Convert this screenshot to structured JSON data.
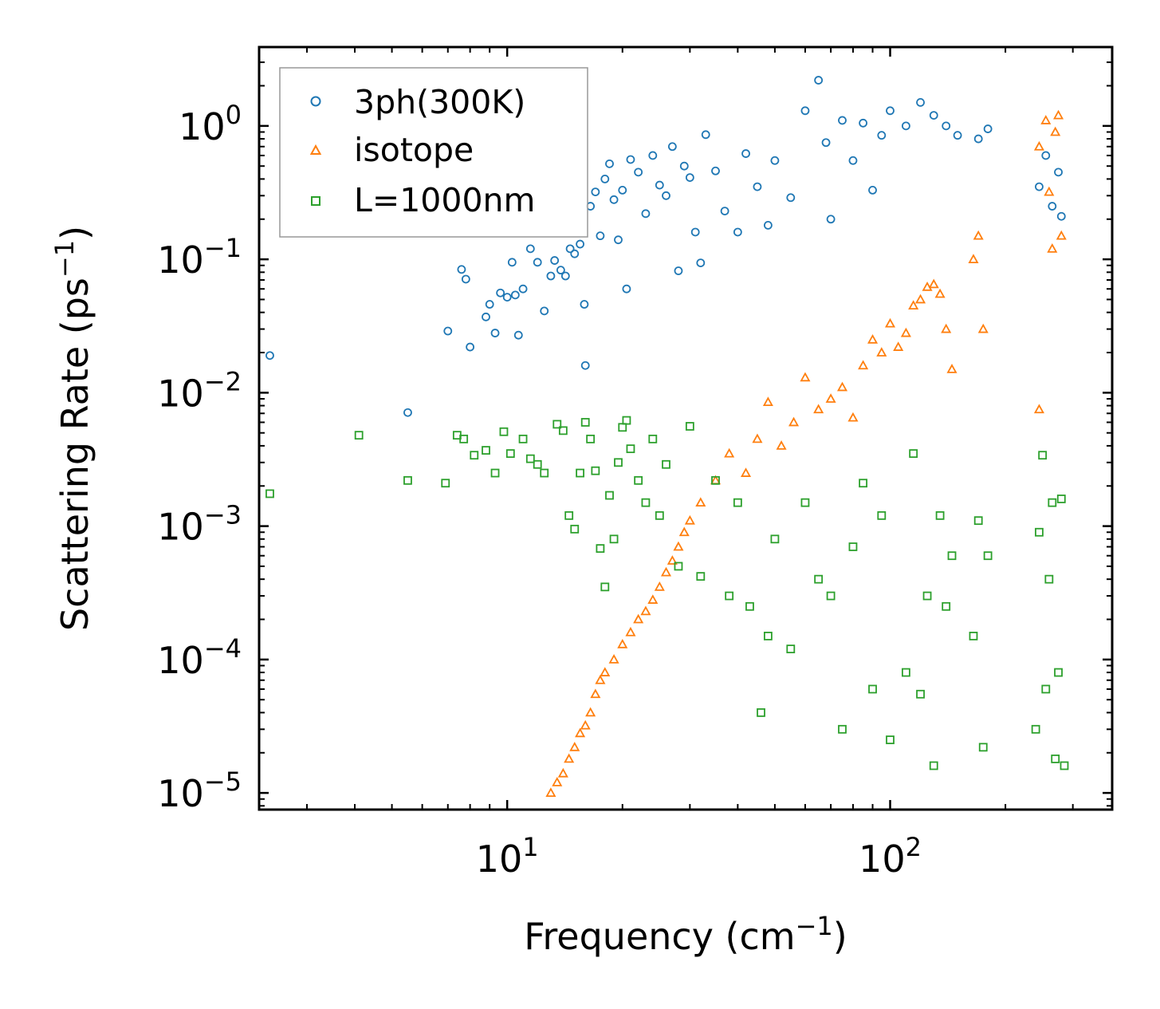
{
  "chart_data": {
    "type": "scatter",
    "xscale": "log",
    "yscale": "log",
    "xlim": [
      2.25,
      380
    ],
    "ylim": [
      7.5e-06,
      3.9
    ],
    "xlabel": "Frequency (cm",
    "xlabel_sup": "−1",
    "xlabel_end": ")",
    "ylabel": "Scattering Rate (ps",
    "ylabel_sup": "−1",
    "ylabel_end": ")",
    "x_ticks": [
      {
        "value": 10,
        "base": "10",
        "exp": "1"
      },
      {
        "value": 100,
        "base": "10",
        "exp": "2"
      }
    ],
    "y_ticks": [
      {
        "value": 1,
        "base": "10",
        "exp": "0"
      },
      {
        "value": 0.1,
        "base": "10",
        "exp": "−1"
      },
      {
        "value": 0.01,
        "base": "10",
        "exp": "−2"
      },
      {
        "value": 0.001,
        "base": "10",
        "exp": "−3"
      },
      {
        "value": 0.0001,
        "base": "10",
        "exp": "−4"
      },
      {
        "value": 1e-05,
        "base": "10",
        "exp": "−5"
      }
    ],
    "legend_position": "top-left",
    "series": [
      {
        "name": "3ph(300K)",
        "marker": "circle",
        "color": "#1f77b4",
        "points": [
          [
            2.4,
            0.019
          ],
          [
            5.5,
            0.0071
          ],
          [
            7.0,
            0.029
          ],
          [
            7.6,
            0.084
          ],
          [
            7.8,
            0.071
          ],
          [
            8.0,
            0.022
          ],
          [
            8.8,
            0.037
          ],
          [
            9.0,
            0.046
          ],
          [
            9.3,
            0.028
          ],
          [
            9.6,
            0.056
          ],
          [
            10.0,
            0.052
          ],
          [
            10.3,
            0.095
          ],
          [
            10.5,
            0.054
          ],
          [
            10.7,
            0.027
          ],
          [
            11.0,
            0.06
          ],
          [
            11.5,
            0.12
          ],
          [
            12.0,
            0.095
          ],
          [
            12.5,
            0.041
          ],
          [
            13.0,
            0.075
          ],
          [
            13.3,
            0.098
          ],
          [
            13.8,
            0.083
          ],
          [
            14.2,
            0.075
          ],
          [
            14.6,
            0.12
          ],
          [
            15.0,
            0.11
          ],
          [
            15.5,
            0.13
          ],
          [
            15.9,
            0.046
          ],
          [
            16.0,
            0.016
          ],
          [
            16.5,
            0.25
          ],
          [
            17.0,
            0.32
          ],
          [
            17.5,
            0.15
          ],
          [
            18.0,
            0.4
          ],
          [
            18.5,
            0.52
          ],
          [
            19.0,
            0.28
          ],
          [
            19.5,
            0.14
          ],
          [
            20.0,
            0.33
          ],
          [
            20.5,
            0.06
          ],
          [
            21.0,
            0.56
          ],
          [
            22.0,
            0.45
          ],
          [
            23.0,
            0.22
          ],
          [
            24.0,
            0.6
          ],
          [
            25.0,
            0.36
          ],
          [
            26.0,
            0.3
          ],
          [
            27.0,
            0.7
          ],
          [
            28.0,
            0.082
          ],
          [
            29.0,
            0.5
          ],
          [
            30.0,
            0.41
          ],
          [
            31.0,
            0.16
          ],
          [
            32.0,
            0.094
          ],
          [
            33.0,
            0.86
          ],
          [
            35.0,
            0.46
          ],
          [
            37.0,
            0.23
          ],
          [
            40.0,
            0.16
          ],
          [
            42.0,
            0.62
          ],
          [
            45.0,
            0.35
          ],
          [
            48.0,
            0.18
          ],
          [
            50.0,
            0.55
          ],
          [
            55.0,
            0.29
          ],
          [
            60.0,
            1.3
          ],
          [
            65.0,
            2.2
          ],
          [
            68.0,
            0.75
          ],
          [
            70.0,
            0.2
          ],
          [
            75.0,
            1.1
          ],
          [
            80.0,
            0.55
          ],
          [
            85.0,
            1.05
          ],
          [
            90.0,
            0.33
          ],
          [
            95.0,
            0.85
          ],
          [
            100.0,
            1.3
          ],
          [
            110.0,
            1.0
          ],
          [
            120.0,
            1.5
          ],
          [
            130.0,
            1.2
          ],
          [
            140.0,
            1.0
          ],
          [
            150.0,
            0.85
          ],
          [
            170.0,
            0.8
          ],
          [
            180.0,
            0.95
          ],
          [
            245.0,
            0.35
          ],
          [
            255.0,
            0.6
          ],
          [
            265.0,
            0.25
          ],
          [
            275.0,
            0.45
          ],
          [
            280.0,
            0.21
          ]
        ]
      },
      {
        "name": "isotope",
        "marker": "triangle",
        "color": "#ff7f0e",
        "points": [
          [
            13.0,
            1e-05
          ],
          [
            13.5,
            1.2e-05
          ],
          [
            14.0,
            1.4e-05
          ],
          [
            14.5,
            1.8e-05
          ],
          [
            15.0,
            2.2e-05
          ],
          [
            15.5,
            2.8e-05
          ],
          [
            16.0,
            3.2e-05
          ],
          [
            16.5,
            4e-05
          ],
          [
            17.0,
            5.5e-05
          ],
          [
            17.5,
            7e-05
          ],
          [
            18.0,
            8e-05
          ],
          [
            19.0,
            0.0001
          ],
          [
            20.0,
            0.00013
          ],
          [
            21.0,
            0.00016
          ],
          [
            22.0,
            0.0002
          ],
          [
            23.0,
            0.00023
          ],
          [
            24.0,
            0.00028
          ],
          [
            25.0,
            0.00035
          ],
          [
            26.0,
            0.00045
          ],
          [
            27.0,
            0.00055
          ],
          [
            28.0,
            0.0007
          ],
          [
            29.0,
            0.0009
          ],
          [
            30.0,
            0.0011
          ],
          [
            32.0,
            0.0015
          ],
          [
            35.0,
            0.0022
          ],
          [
            38.0,
            0.0035
          ],
          [
            42.0,
            0.0025
          ],
          [
            45.0,
            0.0045
          ],
          [
            48.0,
            0.0085
          ],
          [
            52.0,
            0.004
          ],
          [
            56.0,
            0.006
          ],
          [
            60.0,
            0.013
          ],
          [
            65.0,
            0.0075
          ],
          [
            70.0,
            0.009
          ],
          [
            75.0,
            0.011
          ],
          [
            80.0,
            0.0065
          ],
          [
            85.0,
            0.016
          ],
          [
            90.0,
            0.025
          ],
          [
            95.0,
            0.02
          ],
          [
            100.0,
            0.033
          ],
          [
            105.0,
            0.022
          ],
          [
            110.0,
            0.028
          ],
          [
            115.0,
            0.045
          ],
          [
            120.0,
            0.05
          ],
          [
            125.0,
            0.062
          ],
          [
            130.0,
            0.065
          ],
          [
            135.0,
            0.055
          ],
          [
            140.0,
            0.03
          ],
          [
            145.0,
            0.015
          ],
          [
            165.0,
            0.1
          ],
          [
            170.0,
            0.15
          ],
          [
            175.0,
            0.03
          ],
          [
            245.0,
            0.7
          ],
          [
            255.0,
            1.1
          ],
          [
            260.0,
            0.32
          ],
          [
            265.0,
            0.12
          ],
          [
            270.0,
            0.9
          ],
          [
            275.0,
            1.2
          ],
          [
            280.0,
            0.15
          ],
          [
            245.0,
            0.0075
          ]
        ]
      },
      {
        "name": "L=1000nm",
        "marker": "square",
        "color": "#2ca02c",
        "points": [
          [
            2.4,
            0.00175
          ],
          [
            4.1,
            0.0048
          ],
          [
            5.5,
            0.0022
          ],
          [
            6.9,
            0.0021
          ],
          [
            7.4,
            0.0048
          ],
          [
            7.7,
            0.0045
          ],
          [
            8.2,
            0.0034
          ],
          [
            8.8,
            0.0037
          ],
          [
            9.3,
            0.0025
          ],
          [
            9.8,
            0.0051
          ],
          [
            10.2,
            0.0035
          ],
          [
            11.0,
            0.0045
          ],
          [
            11.5,
            0.0032
          ],
          [
            12.0,
            0.0029
          ],
          [
            12.5,
            0.0025
          ],
          [
            13.5,
            0.0058
          ],
          [
            14.0,
            0.0052
          ],
          [
            14.5,
            0.0012
          ],
          [
            15.0,
            0.00095
          ],
          [
            15.5,
            0.0025
          ],
          [
            16.0,
            0.006
          ],
          [
            16.5,
            0.0045
          ],
          [
            17.0,
            0.0026
          ],
          [
            17.5,
            0.00068
          ],
          [
            18.0,
            0.00035
          ],
          [
            18.5,
            0.0017
          ],
          [
            19.0,
            0.0008
          ],
          [
            19.5,
            0.003
          ],
          [
            20.0,
            0.0055
          ],
          [
            20.5,
            0.0062
          ],
          [
            21.0,
            0.0038
          ],
          [
            22.0,
            0.0022
          ],
          [
            23.0,
            0.0015
          ],
          [
            24.0,
            0.0045
          ],
          [
            25.0,
            0.0012
          ],
          [
            26.0,
            0.0029
          ],
          [
            28.0,
            0.0005
          ],
          [
            30.0,
            0.0056
          ],
          [
            32.0,
            0.00042
          ],
          [
            35.0,
            0.0022
          ],
          [
            38.0,
            0.0003
          ],
          [
            40.0,
            0.0015
          ],
          [
            43.0,
            0.00025
          ],
          [
            46.0,
            4e-05
          ],
          [
            48.0,
            0.00015
          ],
          [
            50.0,
            0.0008
          ],
          [
            55.0,
            0.00012
          ],
          [
            60.0,
            0.0015
          ],
          [
            65.0,
            0.0004
          ],
          [
            70.0,
            0.0003
          ],
          [
            75.0,
            3e-05
          ],
          [
            80.0,
            0.0007
          ],
          [
            85.0,
            0.0021
          ],
          [
            90.0,
            6e-05
          ],
          [
            95.0,
            0.0012
          ],
          [
            100.0,
            2.5e-05
          ],
          [
            110.0,
            8e-05
          ],
          [
            115.0,
            0.0035
          ],
          [
            120.0,
            5.5e-05
          ],
          [
            125.0,
            0.0003
          ],
          [
            130.0,
            1.6e-05
          ],
          [
            135.0,
            0.0012
          ],
          [
            140.0,
            0.00025
          ],
          [
            145.0,
            0.0006
          ],
          [
            165.0,
            0.00015
          ],
          [
            170.0,
            0.0011
          ],
          [
            175.0,
            2.2e-05
          ],
          [
            180.0,
            0.0006
          ],
          [
            240.0,
            3e-05
          ],
          [
            245.0,
            0.0009
          ],
          [
            250.0,
            0.0034
          ],
          [
            255.0,
            6e-05
          ],
          [
            260.0,
            0.0004
          ],
          [
            265.0,
            0.0015
          ],
          [
            270.0,
            1.8e-05
          ],
          [
            275.0,
            8e-05
          ],
          [
            280.0,
            0.0016
          ],
          [
            285.0,
            1.6e-05
          ]
        ]
      }
    ]
  }
}
